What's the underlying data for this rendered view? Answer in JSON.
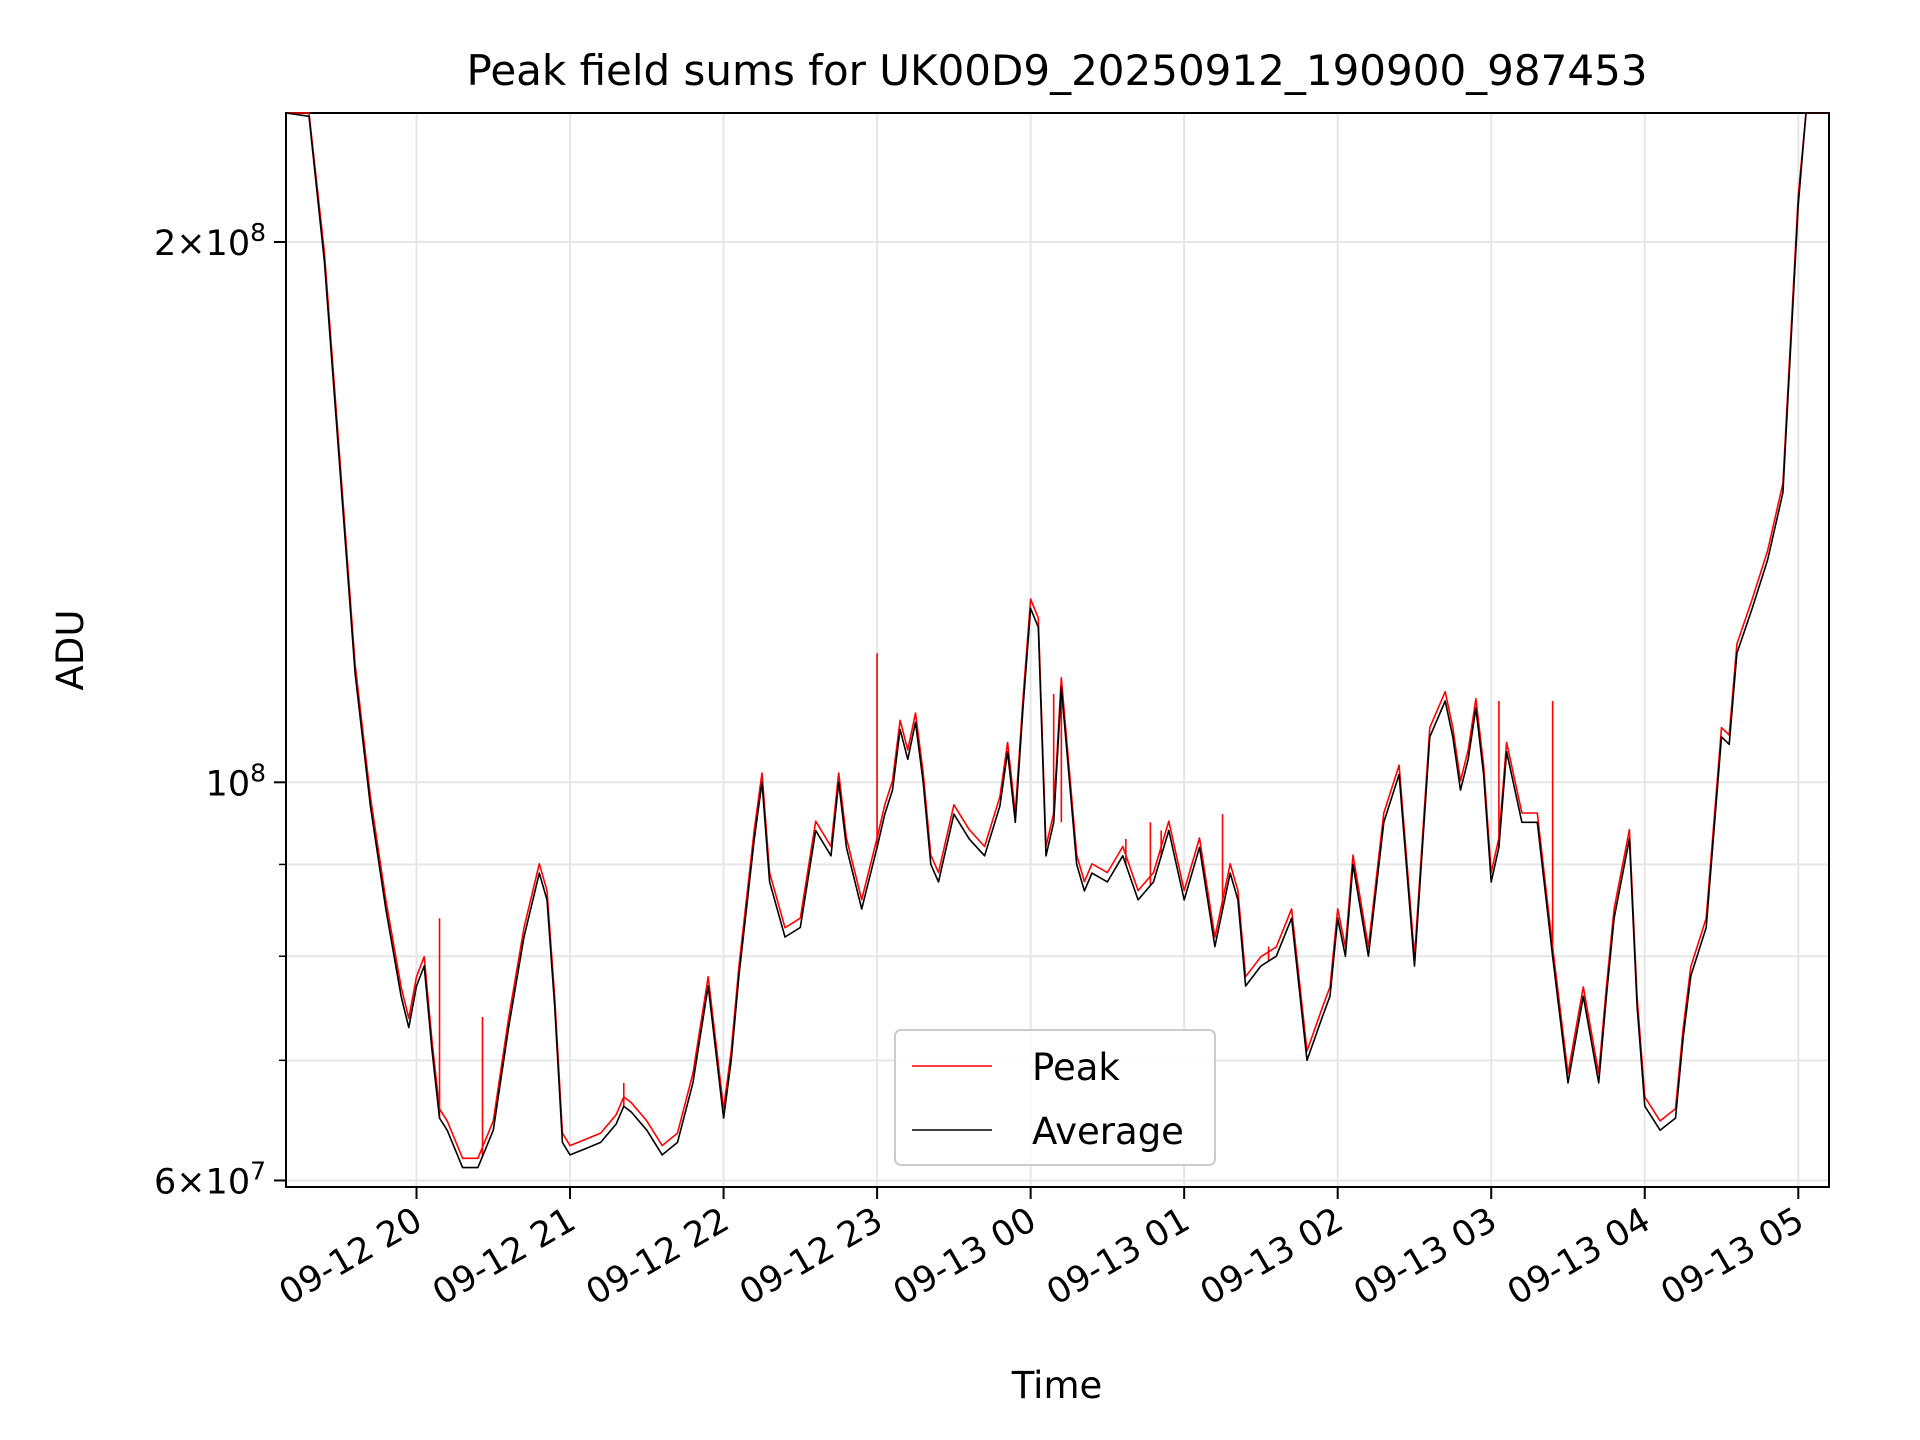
{
  "chart_data": {
    "type": "line",
    "title": "Peak field sums for UK00D9_20250912_190900_987453",
    "xlabel": "Time",
    "ylabel": "ADU",
    "yscale": "log",
    "ylim": [
      59500000,
      236000000
    ],
    "xlim": [
      19.15,
      29.2
    ],
    "grid": true,
    "legend_position": "lower-center",
    "x_ticks": [
      {
        "value": 20,
        "label": "09-12 20"
      },
      {
        "value": 21,
        "label": "09-12 21"
      },
      {
        "value": 22,
        "label": "09-12 22"
      },
      {
        "value": 23,
        "label": "09-12 23"
      },
      {
        "value": 24,
        "label": "09-13 00"
      },
      {
        "value": 25,
        "label": "09-13 01"
      },
      {
        "value": 26,
        "label": "09-13 02"
      },
      {
        "value": 27,
        "label": "09-13 03"
      },
      {
        "value": 28,
        "label": "09-13 04"
      },
      {
        "value": 29,
        "label": "09-13 05"
      }
    ],
    "y_major_ticks": [
      {
        "value": 60000000,
        "base": "6",
        "exp": "7"
      },
      {
        "value": 100000000,
        "base": "",
        "exp": "8"
      },
      {
        "value": 200000000,
        "base": "2",
        "exp": "8"
      }
    ],
    "y_minor_ticks": [
      70000000,
      80000000,
      90000000
    ],
    "series": [
      {
        "name": "Peak",
        "color": "#ff0000"
      },
      {
        "name": "Average",
        "color": "#000000"
      }
    ],
    "x": [
      19.15,
      19.3,
      19.4,
      19.5,
      19.6,
      19.7,
      19.8,
      19.9,
      19.95,
      20.0,
      20.05,
      20.1,
      20.15,
      20.2,
      20.3,
      20.4,
      20.5,
      20.6,
      20.7,
      20.8,
      20.85,
      20.9,
      20.95,
      21.0,
      21.1,
      21.2,
      21.3,
      21.35,
      21.4,
      21.5,
      21.6,
      21.7,
      21.8,
      21.9,
      22.0,
      22.05,
      22.1,
      22.2,
      22.25,
      22.3,
      22.4,
      22.5,
      22.6,
      22.7,
      22.75,
      22.8,
      22.9,
      23.0,
      23.05,
      23.1,
      23.15,
      23.2,
      23.25,
      23.3,
      23.35,
      23.4,
      23.5,
      23.6,
      23.7,
      23.8,
      23.85,
      23.9,
      23.95,
      24.0,
      24.05,
      24.1,
      24.15,
      24.2,
      24.3,
      24.35,
      24.4,
      24.5,
      24.6,
      24.7,
      24.8,
      24.9,
      25.0,
      25.1,
      25.2,
      25.3,
      25.35,
      25.4,
      25.5,
      25.6,
      25.7,
      25.8,
      25.9,
      25.95,
      26.0,
      26.05,
      26.1,
      26.2,
      26.3,
      26.4,
      26.5,
      26.6,
      26.7,
      26.75,
      26.8,
      26.85,
      26.9,
      26.95,
      27.0,
      27.05,
      27.1,
      27.2,
      27.3,
      27.4,
      27.5,
      27.6,
      27.7,
      27.75,
      27.8,
      27.9,
      27.95,
      28.0,
      28.05,
      28.1,
      28.2,
      28.25,
      28.3,
      28.4,
      28.5,
      28.55,
      28.6,
      28.7,
      28.8,
      28.9,
      29.0,
      29.05,
      29.2
    ],
    "average": [
      236000000,
      235000000,
      195000000,
      150000000,
      115000000,
      97000000,
      85000000,
      76000000,
      73000000,
      77000000,
      79000000,
      71000000,
      65000000,
      64000000,
      61000000,
      61000000,
      64000000,
      73000000,
      82000000,
      89000000,
      86000000,
      75000000,
      63000000,
      62000000,
      62500000,
      63000000,
      64500000,
      66000000,
      65500000,
      64000000,
      62000000,
      63000000,
      68000000,
      77000000,
      65000000,
      70000000,
      78000000,
      93000000,
      100000000,
      88000000,
      82000000,
      83000000,
      94000000,
      91000000,
      100000000,
      92000000,
      85000000,
      92000000,
      96000000,
      99000000,
      107000000,
      103000000,
      108000000,
      100000000,
      90000000,
      88000000,
      96000000,
      93000000,
      91000000,
      97000000,
      104000000,
      95000000,
      110000000,
      125000000,
      122000000,
      91000000,
      95000000,
      113000000,
      90000000,
      87000000,
      89000000,
      88000000,
      91000000,
      86000000,
      88000000,
      94000000,
      86000000,
      92000000,
      81000000,
      89000000,
      86000000,
      77000000,
      79000000,
      80000000,
      84000000,
      70000000,
      74000000,
      76000000,
      84000000,
      80000000,
      90000000,
      80000000,
      95000000,
      101000000,
      79000000,
      106000000,
      111000000,
      106000000,
      99000000,
      103000000,
      110000000,
      101000000,
      88000000,
      92000000,
      104000000,
      95000000,
      95000000,
      80000000,
      68000000,
      76000000,
      68000000,
      76000000,
      84000000,
      93000000,
      75000000,
      66000000,
      65000000,
      64000000,
      65000000,
      72000000,
      78000000,
      83000000,
      106000000,
      105000000,
      118000000,
      125000000,
      133000000,
      145000000,
      210000000,
      236000000,
      236000000
    ],
    "peak_spikes": [
      {
        "x": 20.15,
        "value": 84000000
      },
      {
        "x": 20.43,
        "value": 74000000
      },
      {
        "x": 21.35,
        "value": 68000000
      },
      {
        "x": 23.0,
        "value": 118000000
      },
      {
        "x": 24.15,
        "value": 112000000
      },
      {
        "x": 24.2,
        "value": 95000000
      },
      {
        "x": 24.62,
        "value": 93000000
      },
      {
        "x": 24.78,
        "value": 95000000
      },
      {
        "x": 24.85,
        "value": 94000000
      },
      {
        "x": 25.25,
        "value": 96000000
      },
      {
        "x": 25.55,
        "value": 81000000
      },
      {
        "x": 27.05,
        "value": 111000000
      },
      {
        "x": 27.4,
        "value": 111000000
      }
    ]
  }
}
